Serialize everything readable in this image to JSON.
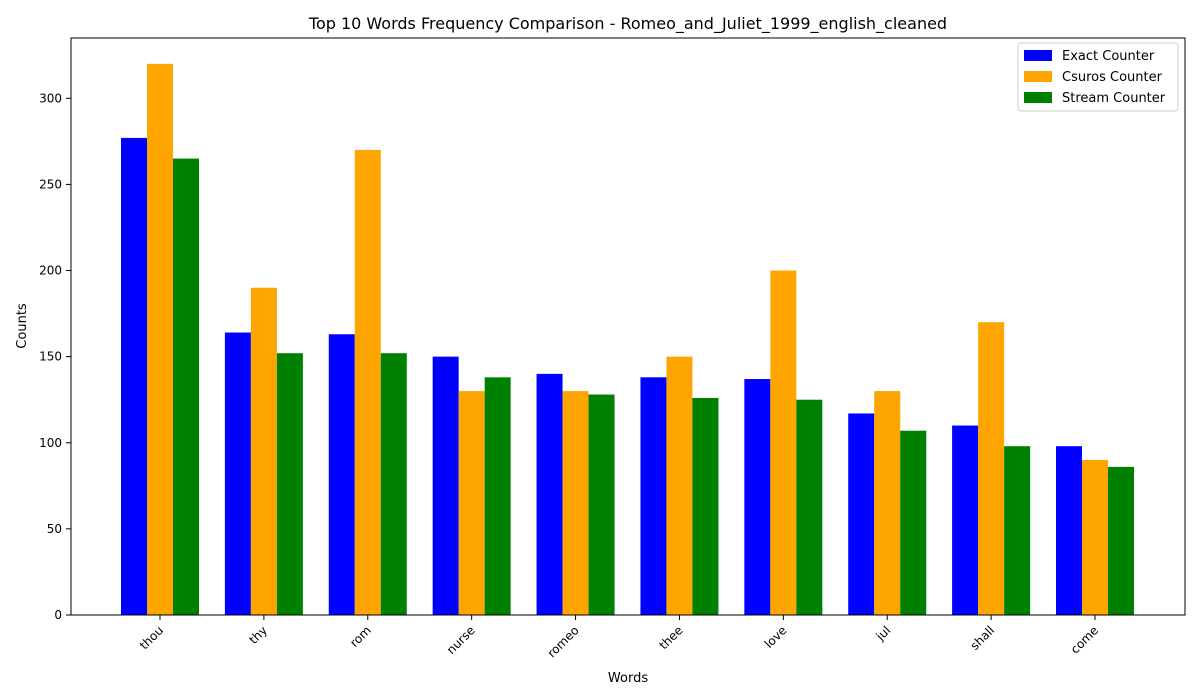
{
  "chart_data": {
    "type": "bar",
    "title": "Top 10 Words Frequency Comparison - Romeo_and_Juliet_1999_english_cleaned",
    "xlabel": "Words",
    "ylabel": "Counts",
    "ylim": [
      0,
      335
    ],
    "yticks": [
      0,
      50,
      100,
      150,
      200,
      250,
      300
    ],
    "categories": [
      "thou",
      "thy",
      "rom",
      "nurse",
      "romeo",
      "thee",
      "love",
      "jul",
      "shall",
      "come"
    ],
    "series": [
      {
        "name": "Exact Counter",
        "color": "#0000ff",
        "values": [
          277,
          164,
          163,
          150,
          140,
          138,
          137,
          117,
          110,
          98
        ]
      },
      {
        "name": "Csuros Counter",
        "color": "#ffa500",
        "values": [
          320,
          190,
          270,
          130,
          130,
          150,
          200,
          130,
          170,
          90
        ]
      },
      {
        "name": "Stream Counter",
        "color": "#008000",
        "values": [
          265,
          152,
          152,
          138,
          128,
          126,
          125,
          107,
          98,
          86
        ]
      }
    ],
    "legend_position": "top-right",
    "grid": false
  }
}
